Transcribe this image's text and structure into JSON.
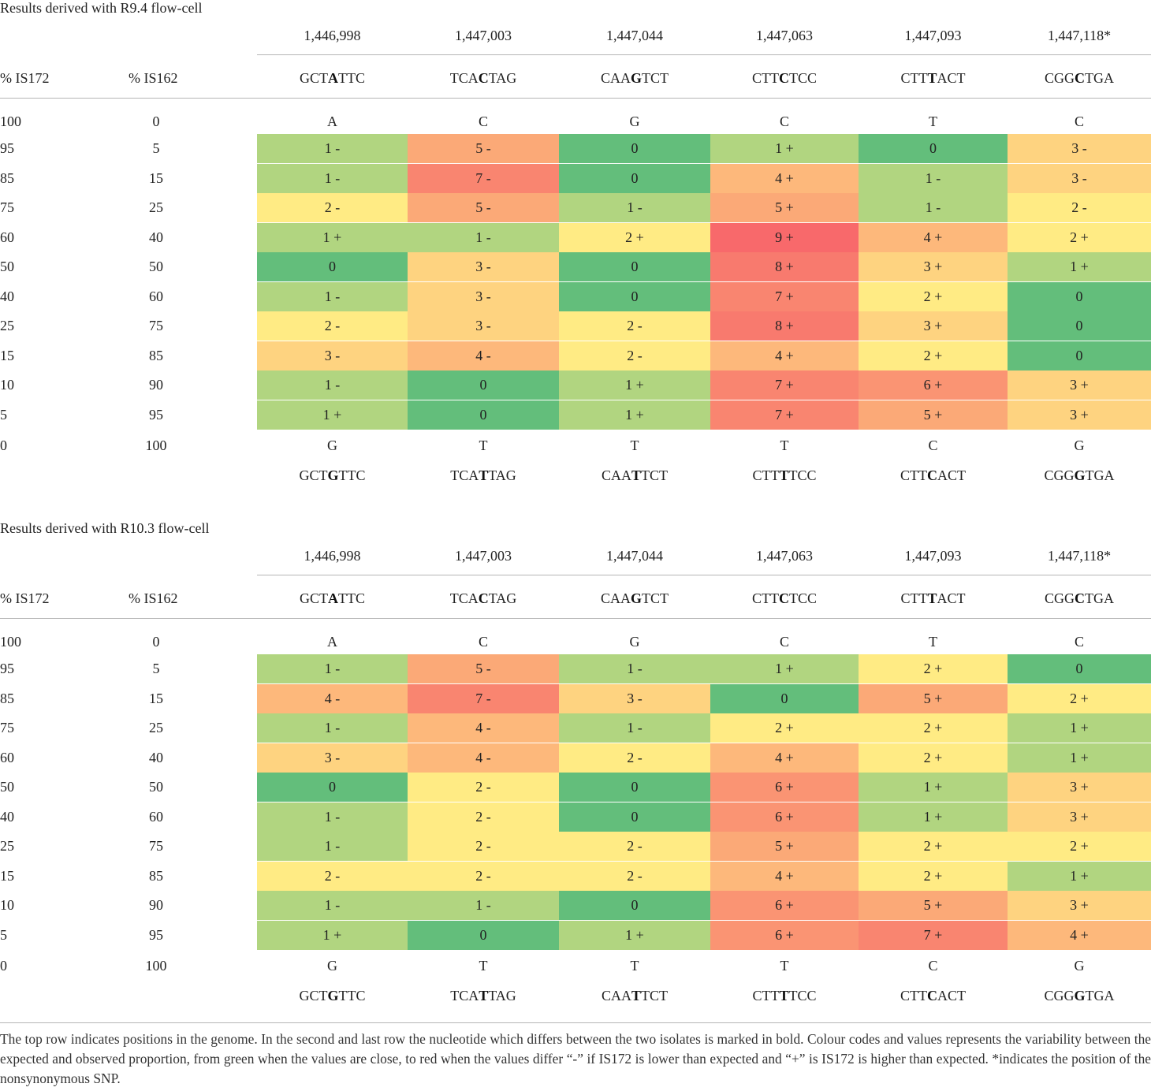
{
  "columns": [
    {
      "position": "1,446,998",
      "top_seq": [
        "GCT",
        "A",
        "TTC"
      ],
      "top_base": "A",
      "bottom_base": "G",
      "bottom_seq": [
        "GCT",
        "G",
        "TTC"
      ]
    },
    {
      "position": "1,447,003",
      "top_seq": [
        "TCA",
        "C",
        "TAG"
      ],
      "top_base": "C",
      "bottom_base": "T",
      "bottom_seq": [
        "TCA",
        "T",
        "TAG"
      ]
    },
    {
      "position": "1,447,044",
      "top_seq": [
        "CAA",
        "G",
        "TCT"
      ],
      "top_base": "G",
      "bottom_base": "T",
      "bottom_seq": [
        "CAA",
        "T",
        "TCT"
      ]
    },
    {
      "position": "1,447,063",
      "top_seq": [
        "CTT",
        "C",
        "TCC"
      ],
      "top_base": "C",
      "bottom_base": "T",
      "bottom_seq": [
        "CTT",
        "T",
        "TCC"
      ]
    },
    {
      "position": "1,447,093",
      "top_seq": [
        "CTT",
        "T",
        "ACT"
      ],
      "top_base": "T",
      "bottom_base": "C",
      "bottom_seq": [
        "CTT",
        "C",
        "ACT"
      ]
    },
    {
      "position": "1,447,118*",
      "top_seq": [
        "CGG",
        "C",
        "TGA"
      ],
      "top_base": "C",
      "bottom_base": "G",
      "bottom_seq": [
        "CGG",
        "G",
        "TGA"
      ]
    }
  ],
  "header_labels": {
    "is172": "% IS172",
    "is162": "% IS162"
  },
  "top_row_pct": {
    "is172": "100",
    "is162": "0"
  },
  "bottom_row_pct": {
    "is172": "0",
    "is162": "100"
  },
  "sections": [
    {
      "title": "Results derived with R9.4 flow-cell",
      "rows": [
        {
          "is172": "95",
          "is162": "5",
          "cells": [
            "1 -",
            "5 -",
            "0",
            "1 +",
            "0",
            "3 -"
          ]
        },
        {
          "is172": "85",
          "is162": "15",
          "cells": [
            "1 -",
            "7 -",
            "0",
            "4 +",
            "1 -",
            "3 -"
          ]
        },
        {
          "is172": "75",
          "is162": "25",
          "cells": [
            "2 -",
            "5 -",
            "1 -",
            "5 +",
            "1 -",
            "2 -"
          ]
        },
        {
          "is172": "60",
          "is162": "40",
          "cells": [
            "1 +",
            "1 -",
            "2 +",
            "9 +",
            "4 +",
            "2 +"
          ]
        },
        {
          "is172": "50",
          "is162": "50",
          "cells": [
            "0",
            "3 -",
            "0",
            "8 +",
            "3 +",
            "1 +"
          ]
        },
        {
          "is172": "40",
          "is162": "60",
          "cells": [
            "1 -",
            "3 -",
            "0",
            "7 +",
            "2 +",
            "0"
          ]
        },
        {
          "is172": "25",
          "is162": "75",
          "cells": [
            "2 -",
            "3 -",
            "2 -",
            "8 +",
            "3 +",
            "0"
          ]
        },
        {
          "is172": "15",
          "is162": "85",
          "cells": [
            "3 -",
            "4 -",
            "2 -",
            "4 +",
            "2 +",
            "0"
          ]
        },
        {
          "is172": "10",
          "is162": "90",
          "cells": [
            "1 -",
            "0",
            "1 +",
            "7 +",
            "6 +",
            "3 +"
          ]
        },
        {
          "is172": "5",
          "is162": "95",
          "cells": [
            "1 +",
            "0",
            "1 +",
            "7 +",
            "5 +",
            "3 +"
          ]
        }
      ]
    },
    {
      "title": "Results derived with R10.3 flow-cell",
      "rows": [
        {
          "is172": "95",
          "is162": "5",
          "cells": [
            "1 -",
            "5 -",
            "1 -",
            "1 +",
            "2 +",
            "0"
          ]
        },
        {
          "is172": "85",
          "is162": "15",
          "cells": [
            "4 -",
            "7 -",
            "3 -",
            "0",
            "5 +",
            "2 +"
          ]
        },
        {
          "is172": "75",
          "is162": "25",
          "cells": [
            "1 -",
            "4 -",
            "1 -",
            "2 +",
            "2 +",
            "1 +"
          ]
        },
        {
          "is172": "60",
          "is162": "40",
          "cells": [
            "3 -",
            "4 -",
            "2 -",
            "4 +",
            "2 +",
            "1 +"
          ]
        },
        {
          "is172": "50",
          "is162": "50",
          "cells": [
            "0",
            "2 -",
            "0",
            "6 +",
            "1 +",
            "3 +"
          ]
        },
        {
          "is172": "40",
          "is162": "60",
          "cells": [
            "1 -",
            "2 -",
            "0",
            "6 +",
            "1 +",
            "3 +"
          ]
        },
        {
          "is172": "25",
          "is162": "75",
          "cells": [
            "1 -",
            "2 -",
            "2 -",
            "5 +",
            "2 +",
            "2 +"
          ]
        },
        {
          "is172": "15",
          "is162": "85",
          "cells": [
            "2 -",
            "2 -",
            "2 -",
            "4 +",
            "2 +",
            "1 +"
          ]
        },
        {
          "is172": "10",
          "is162": "90",
          "cells": [
            "1 -",
            "1 -",
            "0",
            "6 +",
            "5 +",
            "3 +"
          ]
        },
        {
          "is172": "5",
          "is162": "95",
          "cells": [
            "1 +",
            "0",
            "1 +",
            "6 +",
            "7 +",
            "4 +"
          ]
        }
      ]
    }
  ],
  "colors": {
    "0": "#63be7b",
    "1": "#b1d580",
    "2": "#ffeb84",
    "3": "#fed380",
    "4": "#fdb87b",
    "5": "#fba977",
    "6": "#fa9473",
    "7": "#f98570",
    "8": "#f87a6e",
    "9": "#f8696b",
    "r10_pos4_dash": "#fba476",
    "r10_pos7_plus": "#f8696b",
    "r10_pos7_dash": "#f8696b"
  },
  "footnote": "The top row indicates positions in the genome. In the second and last row the nucleotide which differs between the two isolates is marked in bold. Colour codes and values represents the variability between the expected and observed proportion, from green when the values are close, to red when the values differ “-” if IS172 is lower than expected and “+” is IS172 is higher than expected. *indicates the position of the nonsynonymous SNP."
}
